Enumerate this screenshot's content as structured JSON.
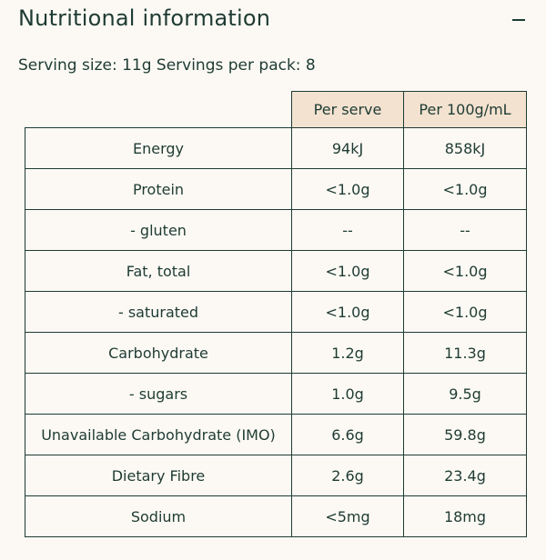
{
  "header": {
    "title": "Nutritional information"
  },
  "serving": "Serving size: 11g Servings per pack: 8",
  "table": {
    "columns": [
      "Per serve",
      "Per 100g/mL"
    ],
    "rows": [
      [
        "Energy",
        "94kJ",
        "858kJ"
      ],
      [
        "Protein",
        "<1.0g",
        "<1.0g"
      ],
      [
        "- gluten",
        "--",
        "--"
      ],
      [
        "Fat, total",
        "<1.0g",
        "<1.0g"
      ],
      [
        "- saturated",
        "<1.0g",
        "<1.0g"
      ],
      [
        "Carbohydrate",
        "1.2g",
        "11.3g"
      ],
      [
        "- sugars",
        "1.0g",
        "9.5g"
      ],
      [
        "Unavailable Carbohydrate (IMO)",
        "6.6g",
        "59.8g"
      ],
      [
        "Dietary Fibre",
        "2.6g",
        "23.4g"
      ],
      [
        "Sodium",
        "<5mg",
        "18mg"
      ]
    ]
  }
}
